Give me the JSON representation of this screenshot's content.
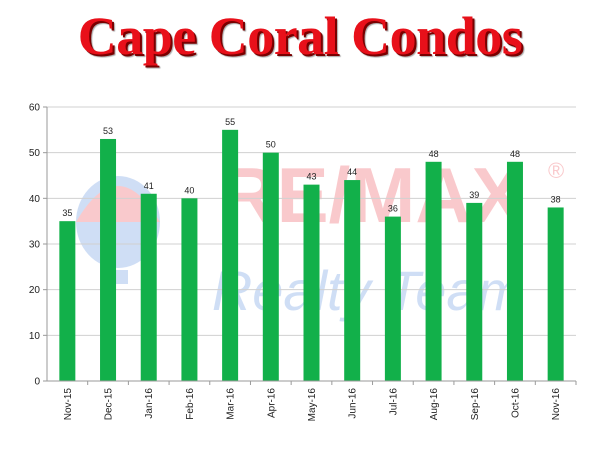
{
  "title": "Cape Coral Condos",
  "colors": {
    "title": "#e8101a",
    "bar": "#12b04a",
    "grid": "#d0d0d0",
    "axis": "#9a9a9a"
  },
  "watermark": {
    "brand": "RE/MAX",
    "script": "Realty Team",
    "registered": "®"
  },
  "chart_data": {
    "type": "bar",
    "categories": [
      "Nov-15",
      "Dec-15",
      "Jan-16",
      "Feb-16",
      "Mar-16",
      "Apr-16",
      "May-16",
      "Jun-16",
      "Jul-16",
      "Aug-16",
      "Sep-16",
      "Oct-16",
      "Nov-16"
    ],
    "values": [
      35,
      53,
      41,
      40,
      55,
      50,
      43,
      44,
      36,
      48,
      39,
      48,
      38
    ],
    "data_labels": [
      "35",
      "53",
      "41",
      "40",
      "55",
      "50",
      "43",
      "44",
      "36",
      "48",
      "39",
      "48",
      "38"
    ],
    "ylim": [
      0,
      60
    ],
    "yticks": [
      0,
      10,
      20,
      30,
      40,
      50,
      60
    ],
    "ytick_labels": [
      "0",
      "10",
      "20",
      "30",
      "40",
      "50",
      "60"
    ],
    "grid": true,
    "xlabel": "",
    "ylabel": ""
  }
}
